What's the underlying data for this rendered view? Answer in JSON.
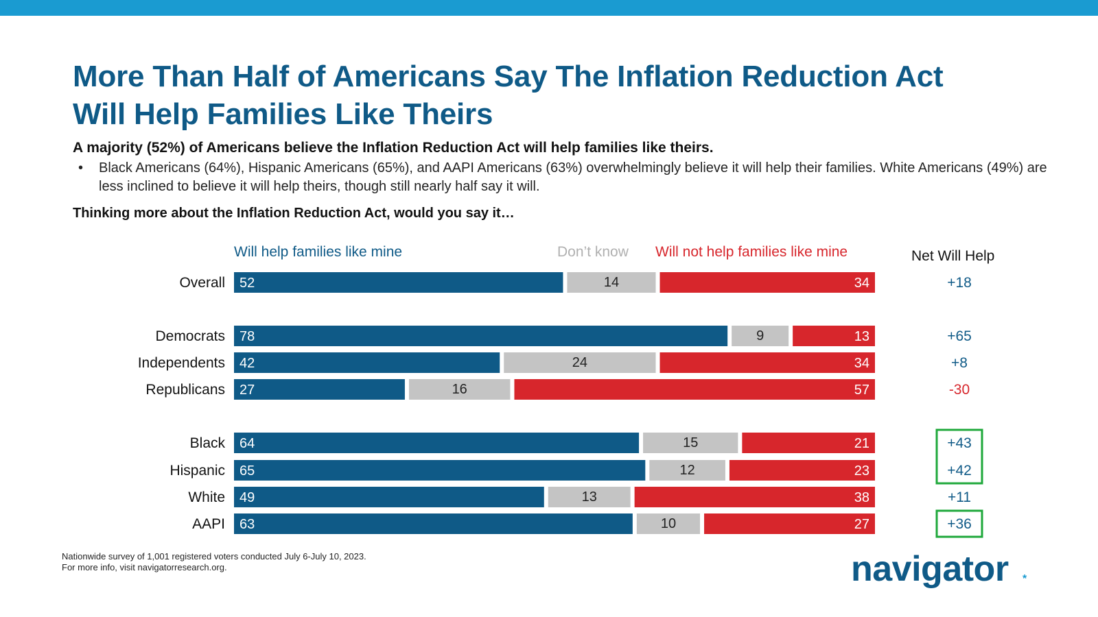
{
  "title_lines": [
    "More Than Half of Americans Say The Inflation Reduction Act",
    "Will Help Families Like Theirs"
  ],
  "subtitle": "A majority (52%) of Americans believe the Inflation Reduction Act will help families like theirs.",
  "bullet": {
    "marker": "•",
    "text": "Black Americans (64%), Hispanic Americans (65%), and AAPI Americans (63%) overwhelmingly believe it will help their families. White Americans (49%) are less inclined to believe it will help theirs, though still nearly half say it will."
  },
  "question": "Thinking more about the Inflation Reduction Act, would you say it…",
  "footnote": [
    "Nationwide survey of 1,001 registered voters conducted July 6-July 10, 2023.",
    "For more info, visit navigatorresearch.org."
  ],
  "logo": {
    "text": "navigator",
    "mark": "*"
  },
  "colors": {
    "help": "#0f5a87",
    "dont_know": "#c4c4c4",
    "will_not": "#d7262c",
    "net_positive": "#0f5a87",
    "net_negative": "#d7262c",
    "highlight_box": "#1fa83b"
  },
  "chart_data": {
    "type": "bar",
    "orientation": "horizontal",
    "stacked": true,
    "series_headers": [
      "Will help families like mine",
      "Don’t know",
      "Will not help families like mine"
    ],
    "net_header": "Net Will Help",
    "rows": [
      {
        "group": 0,
        "label": "Overall",
        "help": 52,
        "dont_know": 14,
        "will_not": 34,
        "net": "+18",
        "highlight": false
      },
      {
        "group": 1,
        "label": "Democrats",
        "help": 78,
        "dont_know": 9,
        "will_not": 13,
        "net": "+65",
        "highlight": false
      },
      {
        "group": 1,
        "label": "Independents",
        "help": 42,
        "dont_know": 24,
        "will_not": 34,
        "net": "+8",
        "highlight": false
      },
      {
        "group": 1,
        "label": "Republicans",
        "help": 27,
        "dont_know": 16,
        "will_not": 57,
        "net": "-30",
        "highlight": false
      },
      {
        "group": 2,
        "label": "Black",
        "help": 64,
        "dont_know": 15,
        "will_not": 21,
        "net": "+43",
        "highlight": true
      },
      {
        "group": 2,
        "label": "Hispanic",
        "help": 65,
        "dont_know": 12,
        "will_not": 23,
        "net": "+42",
        "highlight": true
      },
      {
        "group": 2,
        "label": "White",
        "help": 49,
        "dont_know": 13,
        "will_not": 38,
        "net": "+11",
        "highlight": false
      },
      {
        "group": 2,
        "label": "AAPI",
        "help": 63,
        "dont_know": 10,
        "will_not": 27,
        "net": "+36",
        "highlight": true
      }
    ],
    "xlim": [
      0,
      100
    ]
  }
}
